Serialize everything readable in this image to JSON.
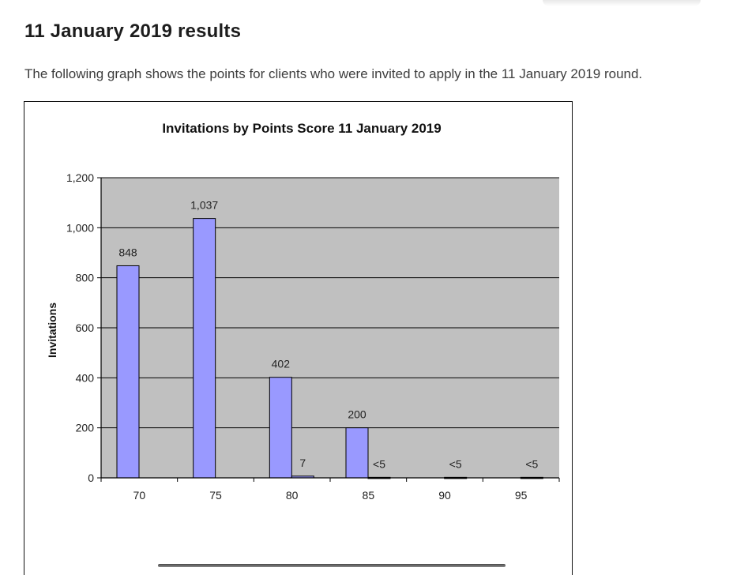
{
  "page": {
    "heading": "11 January 2019 results",
    "intro": "The following graph shows the points for clients who were invited to apply in the 11 January 2019 round."
  },
  "colors": {
    "plot_background": "#c0c0c0",
    "bar_fill": "#9999ff",
    "bar_stroke": "#000000",
    "gridline": "#000000"
  },
  "chart_data": {
    "type": "bar",
    "title": "Invitations by Points Score 11 January 2019",
    "xlabel": "",
    "ylabel": "Invitations",
    "ylim": [
      0,
      1200
    ],
    "yticks": [
      0,
      200,
      400,
      600,
      800,
      1000,
      1200
    ],
    "ytick_labels": [
      "0",
      "200",
      "400",
      "600",
      "800",
      "1,000",
      "1,200"
    ],
    "grid": true,
    "categories": [
      "70",
      "75",
      "80",
      "85",
      "90",
      "95"
    ],
    "bars": [
      {
        "x": 70,
        "value": 848,
        "label": "848"
      },
      {
        "x": 75,
        "value": 1037,
        "label": "1,037"
      },
      {
        "x": 80,
        "value": 402,
        "label": "402"
      },
      {
        "x": 80,
        "value": 7,
        "label": "7"
      },
      {
        "x": 85,
        "value": 200,
        "label": "200"
      },
      {
        "x": 85,
        "value": 2,
        "label": "<5"
      },
      {
        "x": 90,
        "value": 2,
        "label": "<5"
      },
      {
        "x": 95,
        "value": 2,
        "label": "<5"
      }
    ]
  }
}
